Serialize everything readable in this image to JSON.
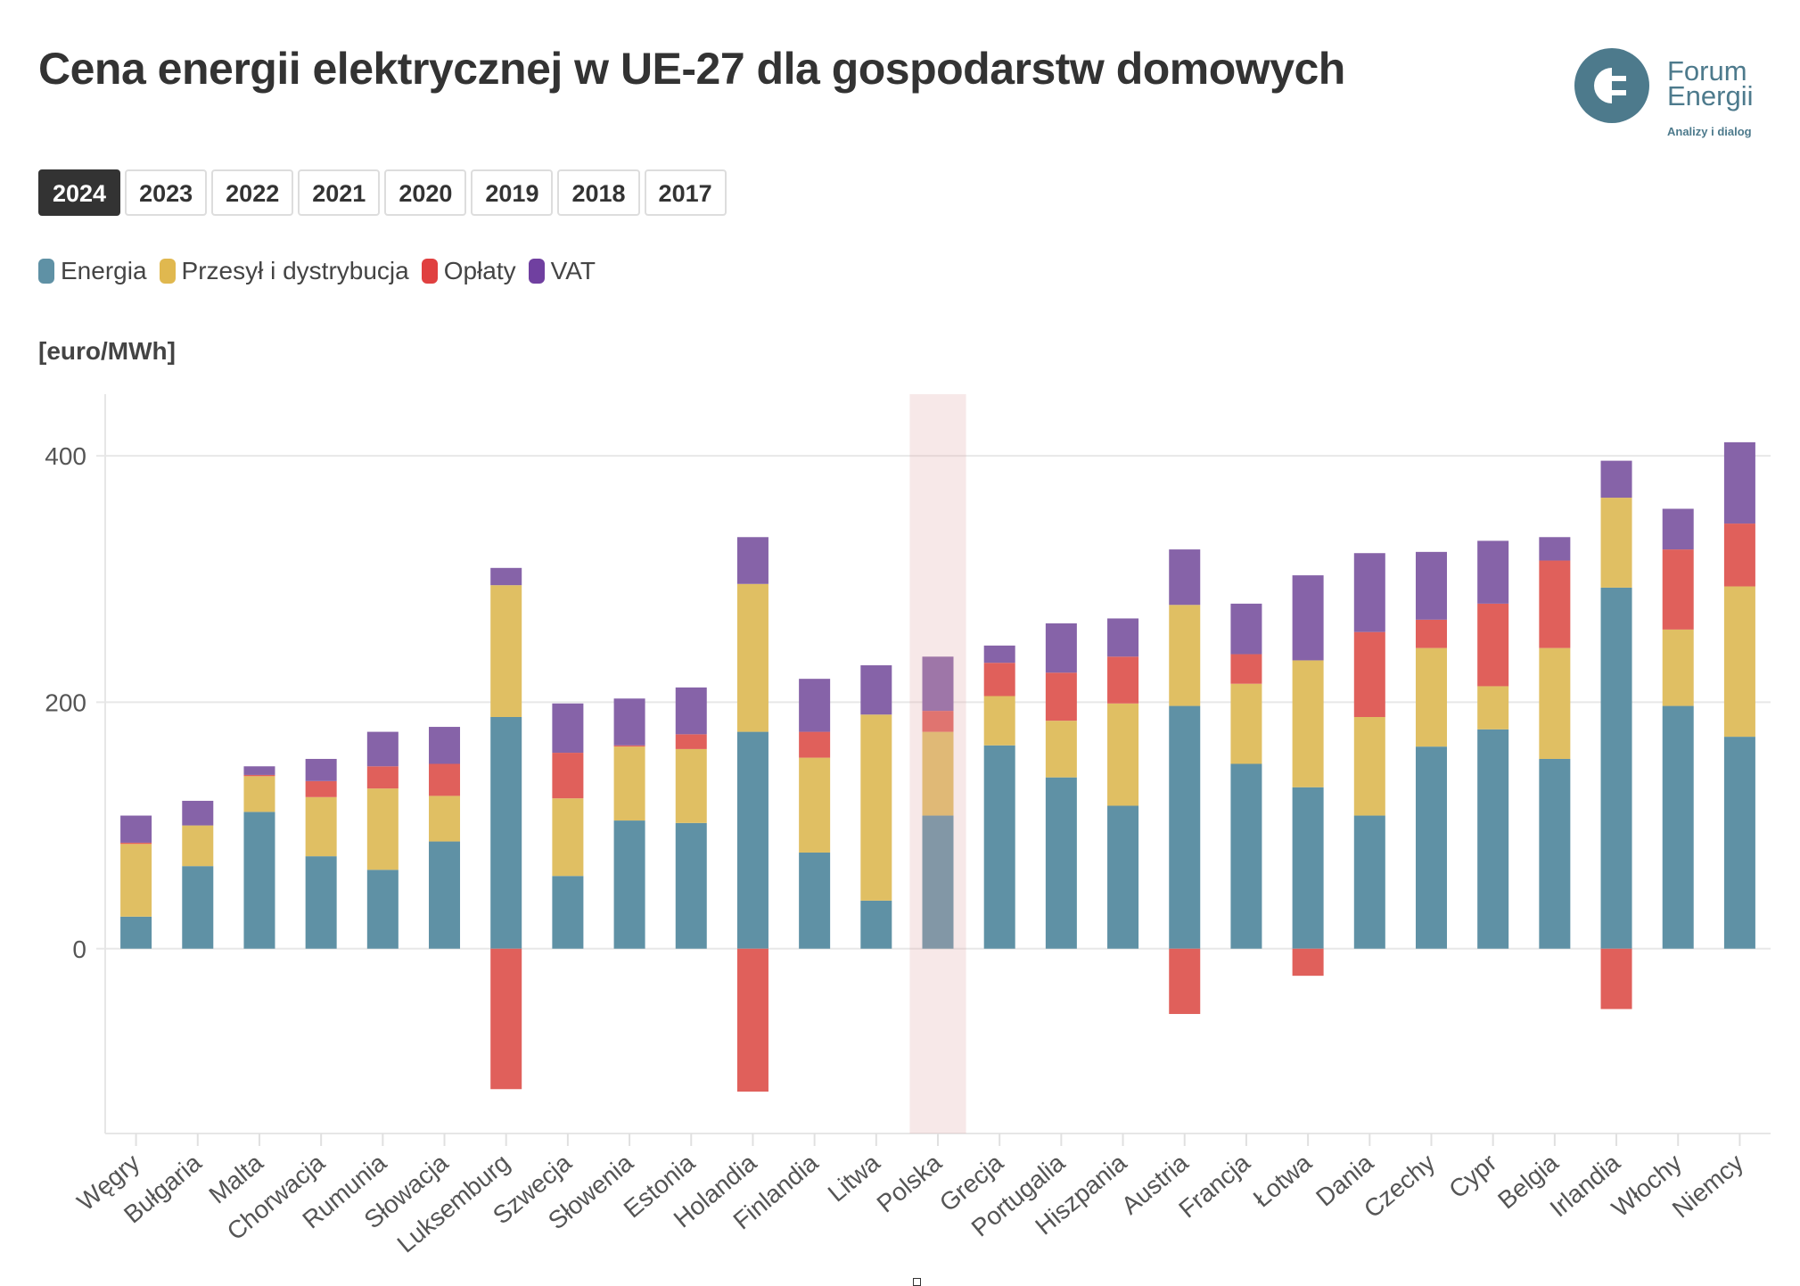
{
  "title": "Cena energii elektrycznej w UE-27 dla gospodarstw domowych",
  "logo": {
    "line1": "Forum",
    "line2": "Energii",
    "tagline": "Analizy i dialog"
  },
  "years": {
    "items": [
      "2024",
      "2023",
      "2022",
      "2021",
      "2020",
      "2019",
      "2018",
      "2017"
    ],
    "active": "2024"
  },
  "highlight": "Polska",
  "chart_data": {
    "type": "bar",
    "stacked": true,
    "ylabel": "[euro/MWh]",
    "ylim": [
      -150,
      450
    ],
    "yticks": [
      0,
      200,
      400
    ],
    "grid": true,
    "legend": "top-left",
    "categories": [
      "Węgry",
      "Bułgaria",
      "Malta",
      "Chorwacja",
      "Rumunia",
      "Słowacja",
      "Luksemburg",
      "Szwecja",
      "Słowenia",
      "Estonia",
      "Holandia",
      "Finlandia",
      "Litwa",
      "Polska",
      "Grecja",
      "Portugalia",
      "Hiszpania",
      "Austria",
      "Francja",
      "Łotwa",
      "Dania",
      "Czechy",
      "Cypr",
      "Belgia",
      "Irlandia",
      "Włochy",
      "Niemcy"
    ],
    "series": [
      {
        "name": "Energia",
        "color": "#5f91a5",
        "values": [
          26,
          67,
          111,
          75,
          64,
          87,
          188,
          59,
          104,
          102,
          176,
          78,
          39,
          108,
          165,
          139,
          116,
          197,
          150,
          131,
          108,
          164,
          178,
          154,
          293,
          197,
          172
        ]
      },
      {
        "name": "Przesył i dystrybucja",
        "color": "#e0bf63",
        "values": [
          59,
          33,
          29,
          48,
          66,
          37,
          107,
          63,
          60,
          60,
          120,
          77,
          151,
          68,
          40,
          46,
          83,
          82,
          65,
          103,
          80,
          80,
          35,
          90,
          73,
          62,
          122
        ]
      },
      {
        "name": "Opłaty",
        "color": "#e0605b",
        "values": [
          1,
          0,
          1,
          13,
          18,
          26,
          -114,
          37,
          1,
          12,
          -116,
          21,
          0,
          17,
          27,
          39,
          38,
          -53,
          24,
          -22,
          69,
          23,
          67,
          71,
          -49,
          65,
          51
        ]
      },
      {
        "name": "VAT",
        "color": "#8663a8",
        "values": [
          22,
          20,
          7,
          18,
          28,
          30,
          14,
          40,
          38,
          38,
          38,
          43,
          40,
          44,
          14,
          40,
          31,
          45,
          41,
          69,
          64,
          55,
          51,
          19,
          30,
          33,
          66
        ]
      }
    ]
  }
}
